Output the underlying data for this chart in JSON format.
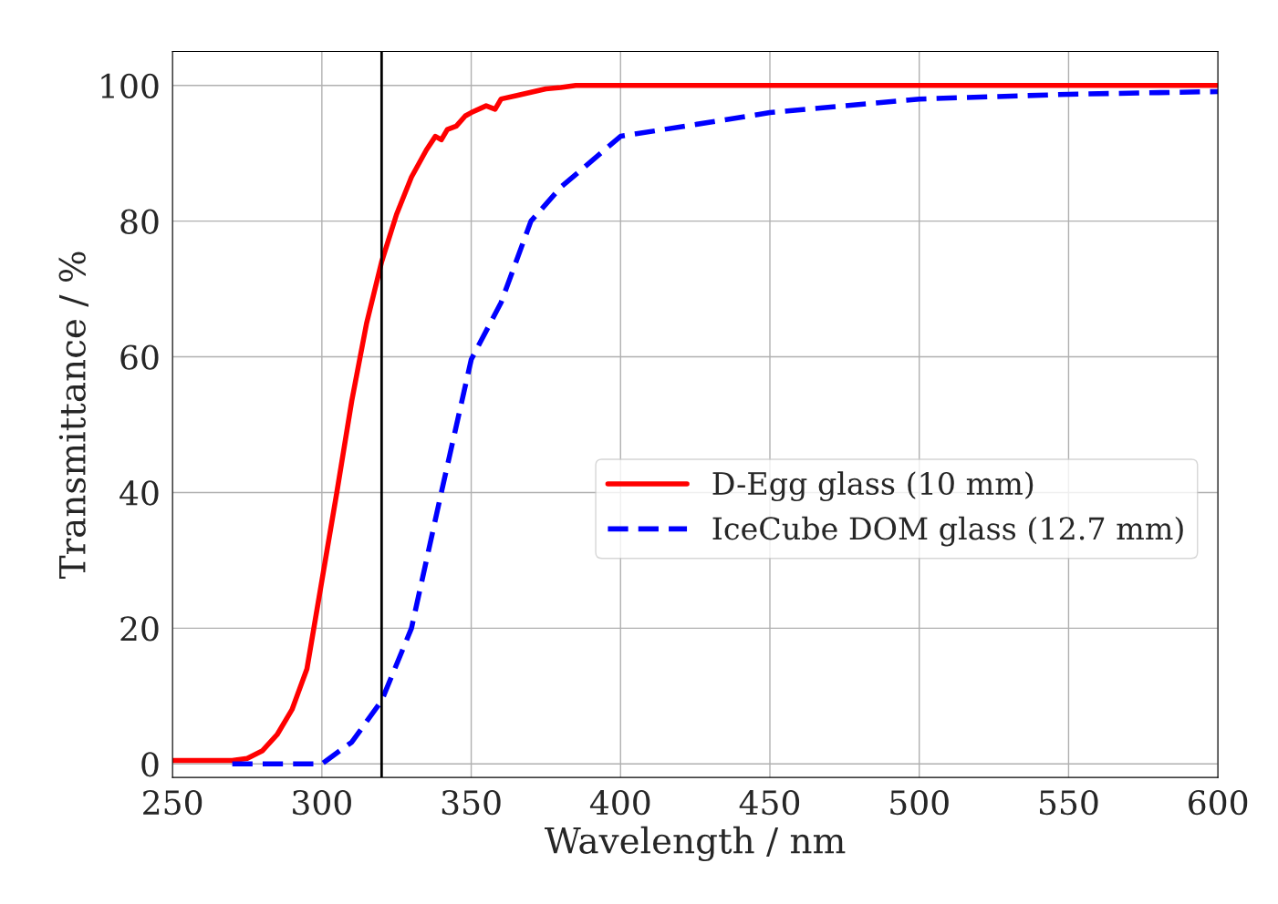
{
  "chart_data": {
    "type": "line",
    "xlabel": "Wavelength / nm",
    "ylabel": "Transmittance / %",
    "xlim": [
      250,
      600
    ],
    "ylim": [
      -2,
      105
    ],
    "xticks": [
      250,
      300,
      350,
      400,
      450,
      500,
      550,
      600
    ],
    "yticks": [
      0,
      20,
      40,
      60,
      80,
      100
    ],
    "grid": true,
    "legend": "right",
    "marker": "none",
    "series": [
      {
        "name": "D-Egg glass (10 mm)",
        "color": "#ff0000",
        "line_style": "solid",
        "x": [
          250,
          270,
          275,
          280,
          285,
          290,
          295,
          300,
          305,
          310,
          315,
          320,
          325,
          330,
          335,
          338,
          340,
          342,
          345,
          348,
          350,
          355,
          358,
          360,
          365,
          370,
          375,
          380,
          385,
          390,
          400,
          410,
          420,
          600
        ],
        "values": [
          0.5,
          0.5,
          0.8,
          1.9,
          4.3,
          8,
          14,
          27,
          40,
          53.5,
          65,
          74,
          81,
          86.5,
          90.5,
          92.5,
          92,
          93.5,
          94,
          95.5,
          96,
          97,
          96.5,
          98,
          98.5,
          99,
          99.5,
          99.7,
          100,
          100,
          100,
          100,
          100,
          100
        ]
      },
      {
        "name": "IceCube DOM glass (12.7 mm)",
        "color": "#0000ff",
        "line_style": "dashed",
        "x": [
          270,
          300,
          310,
          320,
          330,
          340,
          350,
          360,
          370,
          380,
          400,
          450,
          500,
          550,
          600
        ],
        "values": [
          0,
          0,
          3.2,
          9.3,
          20,
          40,
          59.6,
          68,
          80,
          85,
          92.5,
          96,
          98,
          98.7,
          99.1
        ]
      }
    ],
    "ref_lines": [
      {
        "axis": "x",
        "value": 320,
        "color": "#000000",
        "line_style": "solid"
      }
    ]
  }
}
